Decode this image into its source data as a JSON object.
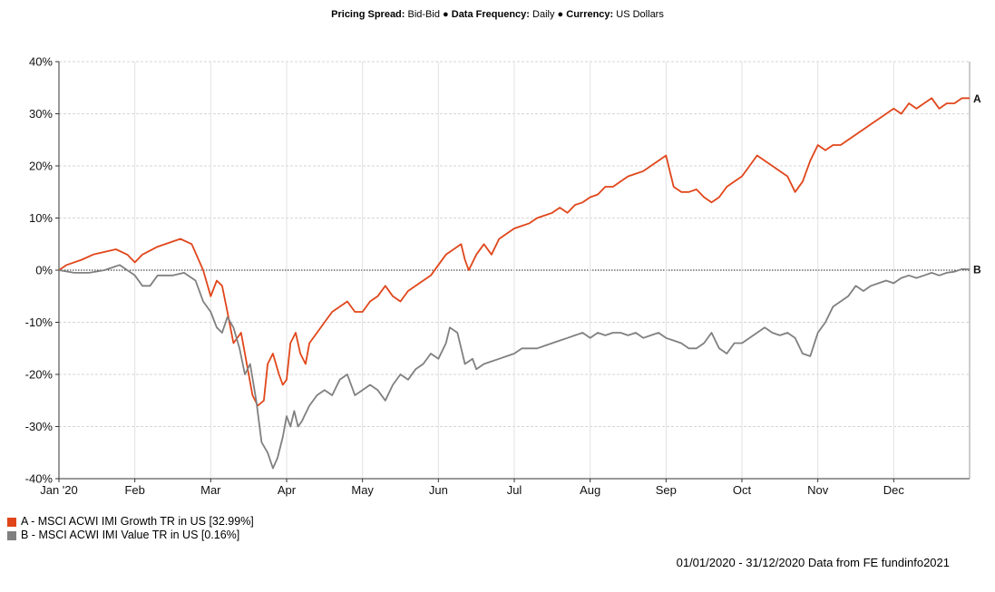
{
  "header": {
    "pricing_label": "Pricing Spread:",
    "pricing_value": "Bid-Bid",
    "frequency_label": "Data Frequency:",
    "frequency_value": "Daily",
    "currency_label": "Currency:",
    "currency_value": "US Dollars",
    "separator": "●"
  },
  "chart_data": {
    "type": "line",
    "title": "",
    "xlabel": "",
    "ylabel": "",
    "ylim": [
      -40,
      40
    ],
    "yticks": [
      40,
      30,
      20,
      10,
      0,
      -10,
      -20,
      -30,
      -40
    ],
    "ytick_labels": [
      "40%",
      "30%",
      "20%",
      "10%",
      "0%",
      "-10%",
      "-20%",
      "-30%",
      "-40%"
    ],
    "xlim": [
      0,
      12
    ],
    "xtick_labels": [
      "Jan '20",
      "Feb",
      "Mar",
      "Apr",
      "May",
      "Jun",
      "Jul",
      "Aug",
      "Sep",
      "Oct",
      "Nov",
      "Dec"
    ],
    "grid": true,
    "zero_line": true,
    "series": [
      {
        "key": "A",
        "color": "#e0461a",
        "x": [
          0,
          0.1,
          0.3,
          0.45,
          0.6,
          0.75,
          0.9,
          1.0,
          1.1,
          1.3,
          1.5,
          1.6,
          1.75,
          1.9,
          2.0,
          2.08,
          2.15,
          2.22,
          2.3,
          2.4,
          2.5,
          2.55,
          2.62,
          2.7,
          2.75,
          2.82,
          2.9,
          2.95,
          3.0,
          3.05,
          3.12,
          3.18,
          3.25,
          3.3,
          3.4,
          3.5,
          3.6,
          3.7,
          3.8,
          3.9,
          4.0,
          4.1,
          4.2,
          4.3,
          4.4,
          4.5,
          4.6,
          4.7,
          4.8,
          4.9,
          5.0,
          5.1,
          5.2,
          5.3,
          5.35,
          5.4,
          5.5,
          5.6,
          5.7,
          5.8,
          5.9,
          6.0,
          6.1,
          6.2,
          6.3,
          6.4,
          6.5,
          6.6,
          6.7,
          6.8,
          6.9,
          7.0,
          7.1,
          7.2,
          7.3,
          7.4,
          7.5,
          7.6,
          7.7,
          7.8,
          7.9,
          8.0,
          8.1,
          8.2,
          8.3,
          8.4,
          8.5,
          8.6,
          8.7,
          8.8,
          8.9,
          9.0,
          9.1,
          9.2,
          9.3,
          9.4,
          9.5,
          9.6,
          9.7,
          9.8,
          9.9,
          10.0,
          10.1,
          10.2,
          10.3,
          10.4,
          10.5,
          10.6,
          10.7,
          10.8,
          10.9,
          11.0,
          11.1,
          11.2,
          11.3,
          11.4,
          11.5,
          11.6,
          11.7,
          11.8,
          11.9,
          12.0
        ],
        "values": [
          0,
          1,
          2,
          3,
          3.5,
          4,
          3,
          1.5,
          3,
          4.5,
          5.5,
          6,
          5,
          0,
          -5,
          -2,
          -3,
          -8,
          -14,
          -12,
          -20,
          -24,
          -26,
          -25,
          -18,
          -16,
          -20,
          -22,
          -21,
          -14,
          -12,
          -16,
          -18,
          -14,
          -12,
          -10,
          -8,
          -7,
          -6,
          -8,
          -8,
          -6,
          -5,
          -3,
          -5,
          -6,
          -4,
          -3,
          -2,
          -1,
          1,
          3,
          4,
          5,
          2,
          0,
          3,
          5,
          3,
          6,
          7,
          8,
          8.5,
          9,
          10,
          10.5,
          11,
          12,
          11,
          12.5,
          13,
          14,
          14.5,
          16,
          16,
          17,
          18,
          18.5,
          19,
          20,
          21,
          22,
          16,
          15,
          15,
          15.5,
          14,
          13,
          14,
          16,
          17,
          18,
          20,
          22,
          21,
          20,
          19,
          18,
          15,
          17,
          21,
          24,
          23,
          24,
          24,
          25,
          26,
          27,
          28,
          29,
          30,
          31,
          30,
          32,
          31,
          32,
          33,
          31,
          32,
          32,
          33,
          33
        ]
      },
      {
        "key": "B",
        "color": "#808080",
        "x": [
          0,
          0.2,
          0.4,
          0.6,
          0.8,
          1.0,
          1.1,
          1.2,
          1.3,
          1.5,
          1.65,
          1.8,
          1.9,
          2.0,
          2.08,
          2.15,
          2.22,
          2.3,
          2.38,
          2.45,
          2.52,
          2.6,
          2.67,
          2.75,
          2.82,
          2.88,
          2.95,
          3.0,
          3.05,
          3.1,
          3.15,
          3.2,
          3.3,
          3.4,
          3.5,
          3.6,
          3.7,
          3.8,
          3.9,
          4.0,
          4.1,
          4.2,
          4.3,
          4.4,
          4.5,
          4.6,
          4.7,
          4.8,
          4.9,
          5.0,
          5.1,
          5.15,
          5.25,
          5.35,
          5.45,
          5.5,
          5.6,
          5.7,
          5.8,
          5.9,
          6.0,
          6.1,
          6.2,
          6.3,
          6.4,
          6.5,
          6.6,
          6.7,
          6.8,
          6.9,
          7.0,
          7.1,
          7.2,
          7.3,
          7.4,
          7.5,
          7.6,
          7.7,
          7.8,
          7.9,
          8.0,
          8.1,
          8.2,
          8.3,
          8.4,
          8.5,
          8.6,
          8.7,
          8.8,
          8.9,
          9.0,
          9.1,
          9.2,
          9.3,
          9.4,
          9.5,
          9.6,
          9.7,
          9.8,
          9.9,
          10.0,
          10.1,
          10.2,
          10.3,
          10.4,
          10.5,
          10.6,
          10.7,
          10.8,
          10.9,
          11.0,
          11.1,
          11.2,
          11.3,
          11.4,
          11.5,
          11.6,
          11.7,
          11.8,
          11.9,
          12.0
        ],
        "values": [
          0,
          -0.5,
          -0.5,
          0,
          1,
          -1,
          -3,
          -3,
          -1,
          -1,
          -0.5,
          -2,
          -6,
          -8,
          -11,
          -12,
          -9,
          -11,
          -15,
          -20,
          -18,
          -25,
          -33,
          -35,
          -38,
          -36,
          -32,
          -28,
          -30,
          -27,
          -30,
          -29,
          -26,
          -24,
          -23,
          -24,
          -21,
          -20,
          -24,
          -23,
          -22,
          -23,
          -25,
          -22,
          -20,
          -21,
          -19,
          -18,
          -16,
          -17,
          -14,
          -11,
          -12,
          -18,
          -17,
          -19,
          -18,
          -17.5,
          -17,
          -16.5,
          -16,
          -15,
          -15,
          -15,
          -14.5,
          -14,
          -13.5,
          -13,
          -12.5,
          -12,
          -13,
          -12,
          -12.5,
          -12,
          -12,
          -12.5,
          -12,
          -13,
          -12.5,
          -12,
          -13,
          -13.5,
          -14,
          -15,
          -15,
          -14,
          -12,
          -15,
          -16,
          -14,
          -14,
          -13,
          -12,
          -11,
          -12,
          -12.5,
          -12,
          -13,
          -16,
          -16.5,
          -12,
          -10,
          -7,
          -6,
          -5,
          -3,
          -4,
          -3,
          -2.5,
          -2,
          -2.5,
          -1.5,
          -1,
          -1.5,
          -1,
          -0.5,
          -1,
          -0.5,
          -0.3,
          0.2,
          0.16
        ]
      }
    ]
  },
  "legend": [
    {
      "label": "A - MSCI ACWI IMI Growth TR in US [32.99%]",
      "color": "#e0461a"
    },
    {
      "label": "B - MSCI ACWI IMI Value TR in US [0.16%]",
      "color": "#808080"
    }
  ],
  "footer": {
    "text": "01/01/2020 - 31/12/2020 Data from FE fundinfo2021"
  }
}
